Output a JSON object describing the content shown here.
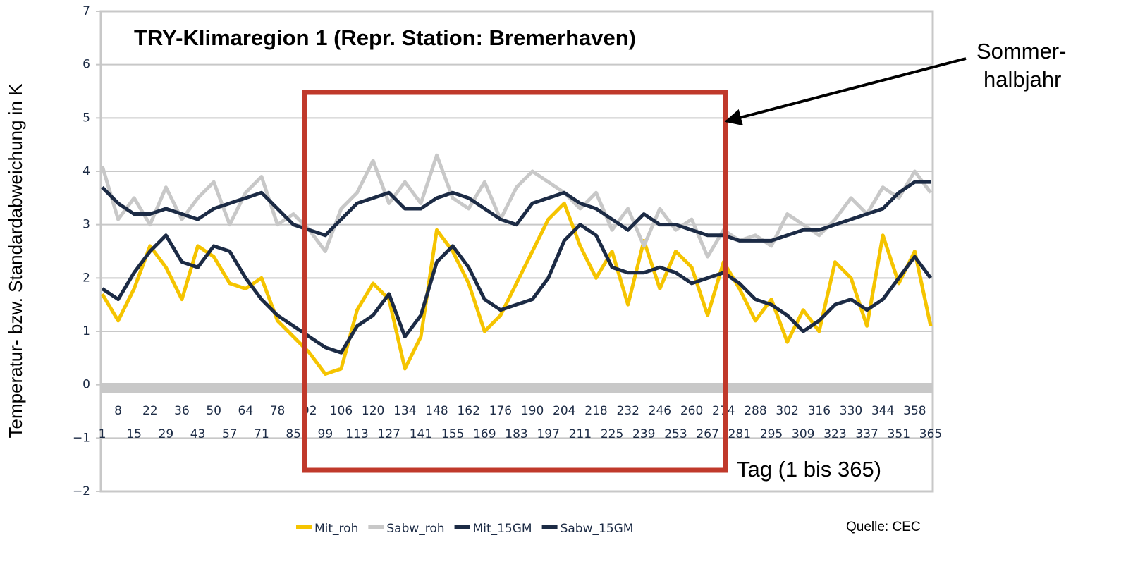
{
  "chart_data": {
    "type": "line",
    "title": "TRY-Klimaregion 1 (Repr. Station: Bremerhaven)",
    "y_label": "Temperatur- bzw. Standardabweichung in K",
    "annotations": {
      "season": [
        "Sommer-",
        "halbjahr"
      ],
      "x_note": "Tag (1 bis 365)",
      "source": "Quelle: CEC"
    },
    "x": [
      1,
      8,
      15,
      22,
      29,
      36,
      43,
      50,
      57,
      64,
      71,
      78,
      85,
      92,
      99,
      106,
      113,
      120,
      127,
      134,
      141,
      148,
      155,
      162,
      169,
      176,
      183,
      190,
      197,
      204,
      211,
      218,
      225,
      232,
      239,
      246,
      253,
      260,
      267,
      274,
      281,
      288,
      295,
      302,
      309,
      316,
      323,
      330,
      337,
      344,
      351,
      358,
      365
    ],
    "xlim": [
      1,
      365
    ],
    "ylim": [
      -2,
      7
    ],
    "yticks": [
      {
        "value": -2,
        "label": "−2"
      },
      {
        "value": -1,
        "label": "−1"
      },
      0,
      1,
      2,
      3,
      4,
      5,
      6,
      7
    ],
    "grid": true,
    "series": [
      {
        "name": "Mit_roh",
        "color": "#f5c400",
        "width": 5,
        "values": [
          1.7,
          1.2,
          1.8,
          2.6,
          2.2,
          1.6,
          2.6,
          2.4,
          1.9,
          1.8,
          2.0,
          1.2,
          0.9,
          0.6,
          0.2,
          0.3,
          1.4,
          1.9,
          1.6,
          0.3,
          0.9,
          2.9,
          2.5,
          1.9,
          1.0,
          1.3,
          1.9,
          2.5,
          3.1,
          3.4,
          2.6,
          2.0,
          2.5,
          1.5,
          2.7,
          1.8,
          2.5,
          2.2,
          1.3,
          2.3,
          1.8,
          1.2,
          1.6,
          0.8,
          1.4,
          1.0,
          2.3,
          2.0,
          1.1,
          2.8,
          1.9,
          2.5,
          1.1
        ]
      },
      {
        "name": "Sabw_roh",
        "color": "#c8c8c8",
        "width": 5,
        "values": [
          4.1,
          3.1,
          3.5,
          3.0,
          3.7,
          3.1,
          3.5,
          3.8,
          3.0,
          3.6,
          3.9,
          3.0,
          3.2,
          2.9,
          2.5,
          3.3,
          3.6,
          4.2,
          3.4,
          3.8,
          3.4,
          4.3,
          3.5,
          3.3,
          3.8,
          3.1,
          3.7,
          4.0,
          3.8,
          3.6,
          3.3,
          3.6,
          2.9,
          3.3,
          2.6,
          3.3,
          2.9,
          3.1,
          2.4,
          2.9,
          2.7,
          2.8,
          2.6,
          3.2,
          3.0,
          2.8,
          3.1,
          3.5,
          3.2,
          3.7,
          3.5,
          4.0,
          3.6
        ]
      },
      {
        "name": "Mit_15GM",
        "color": "#1c2b45",
        "width": 5,
        "values": [
          1.8,
          1.6,
          2.1,
          2.5,
          2.8,
          2.3,
          2.2,
          2.6,
          2.5,
          2.0,
          1.6,
          1.3,
          1.1,
          0.9,
          0.7,
          0.6,
          1.1,
          1.3,
          1.7,
          0.9,
          1.3,
          2.3,
          2.6,
          2.2,
          1.6,
          1.4,
          1.5,
          1.6,
          2.0,
          2.7,
          3.0,
          2.8,
          2.2,
          2.1,
          2.1,
          2.2,
          2.1,
          1.9,
          2.0,
          2.1,
          1.9,
          1.6,
          1.5,
          1.3,
          1.0,
          1.2,
          1.5,
          1.6,
          1.4,
          1.6,
          2.0,
          2.4,
          2.0
        ]
      },
      {
        "name": "Sabw_15GM",
        "color": "#1c2b45",
        "width": 5,
        "values": [
          3.7,
          3.4,
          3.2,
          3.2,
          3.3,
          3.2,
          3.1,
          3.3,
          3.4,
          3.5,
          3.6,
          3.3,
          3.0,
          2.9,
          2.8,
          3.1,
          3.4,
          3.5,
          3.6,
          3.3,
          3.3,
          3.5,
          3.6,
          3.5,
          3.3,
          3.1,
          3.0,
          3.4,
          3.5,
          3.6,
          3.4,
          3.3,
          3.1,
          2.9,
          3.2,
          3.0,
          3.0,
          2.9,
          2.8,
          2.8,
          2.7,
          2.7,
          2.7,
          2.8,
          2.9,
          2.9,
          3.0,
          3.1,
          3.2,
          3.3,
          3.6,
          3.8,
          3.8
        ]
      }
    ]
  }
}
